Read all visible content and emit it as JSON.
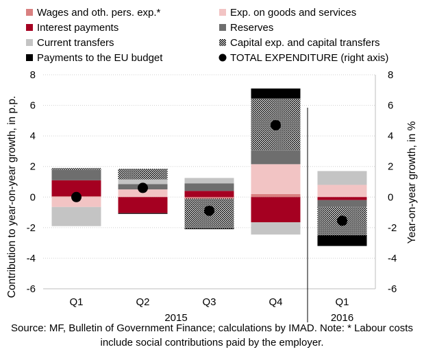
{
  "chart_data": {
    "type": "bar",
    "stacked": true,
    "categories": [
      "Q1",
      "Q2",
      "Q3",
      "Q4",
      "Q1"
    ],
    "year_groups": [
      {
        "label": "2015",
        "categories": [
          0,
          1,
          2,
          3
        ]
      },
      {
        "label": "2016",
        "categories": [
          4
        ]
      }
    ],
    "ylabel_left": "Contribution to year-on-year growth, in p.p.",
    "ylabel_right": "Year-on-year growth, in %",
    "ylim": [
      -6,
      8
    ],
    "yticks": [
      -6,
      -4,
      -2,
      0,
      2,
      4,
      6,
      8
    ],
    "grid": true,
    "legend_placement": "top",
    "series": [
      {
        "name": "Wages and oth. pers. exp.*",
        "color": "#d98080",
        "pattern": "solid",
        "values": [
          0.05,
          0.0,
          -0.1,
          0.2,
          0.0
        ]
      },
      {
        "name": "Exp. on goods and services",
        "color": "#f2c4c4",
        "pattern": "solid",
        "values": [
          -0.65,
          0.5,
          0.0,
          1.95,
          0.8
        ]
      },
      {
        "name": "Interest payments",
        "color": "#a50021",
        "pattern": "solid",
        "values": [
          1.05,
          -1.05,
          0.4,
          -1.65,
          -0.2
        ]
      },
      {
        "name": "Reserves",
        "color": "#6e6e6e",
        "pattern": "solid",
        "values": [
          0.7,
          0.35,
          0.5,
          0.9,
          -0.45
        ]
      },
      {
        "name": "Current transfers",
        "color": "#c4c4c4",
        "pattern": "solid",
        "values": [
          -1.25,
          0.3,
          0.35,
          -0.8,
          0.9
        ]
      },
      {
        "name": "Capital exp. and capital transfers",
        "color": "#000000",
        "pattern": "dots",
        "values": [
          0.1,
          0.7,
          -1.95,
          3.4,
          -1.85
        ]
      },
      {
        "name": "Payments to the EU budget",
        "color": "#000000",
        "pattern": "solid",
        "values": [
          0.0,
          -0.05,
          -0.05,
          0.65,
          -0.7
        ]
      }
    ],
    "total": {
      "name": "TOTAL EXPENDITURE (right axis)",
      "color": "#000000",
      "values": [
        0.0,
        0.6,
        -0.9,
        4.7,
        -1.55
      ]
    },
    "source_note": "Source: MF, Bulletin of Government Finance; calculations by IMAD. Note: * Labour costs include social contributions paid by the employer."
  }
}
